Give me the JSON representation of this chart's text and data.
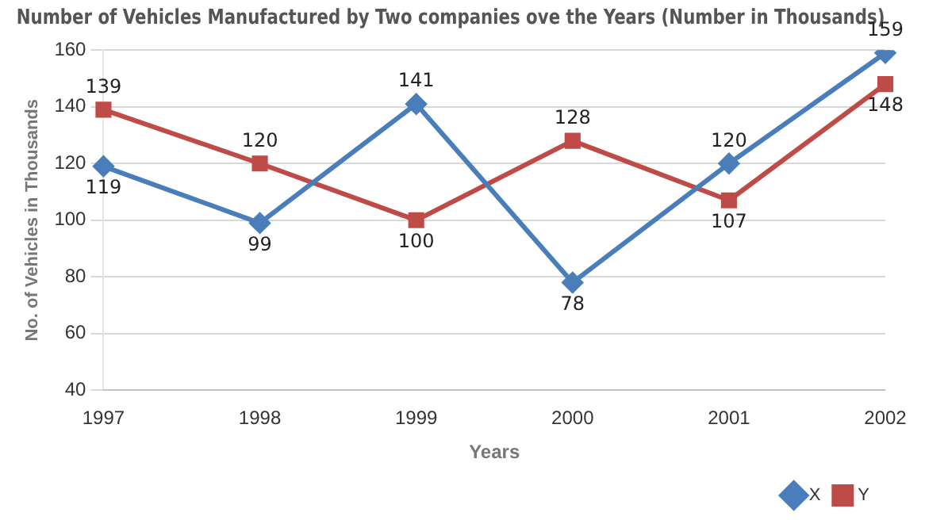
{
  "chart_data": {
    "type": "line",
    "title": "Number of Vehicles Manufactured by Two companies ove the Years (Number in Thousands)",
    "xlabel": "Years",
    "ylabel": "No. of Vehicles in Thousands",
    "categories": [
      "1997",
      "1998",
      "1999",
      "2000",
      "2001",
      "2002"
    ],
    "series": [
      {
        "name": "X",
        "color": "#4a7ebb",
        "marker": "diamond",
        "values": [
          119,
          99,
          141,
          78,
          120,
          159
        ]
      },
      {
        "name": "Y",
        "color": "#be4b48",
        "marker": "square",
        "values": [
          139,
          120,
          100,
          128,
          107,
          148
        ]
      }
    ],
    "ylim": [
      40,
      160
    ],
    "yticks": [
      40,
      60,
      80,
      100,
      120,
      140,
      160
    ],
    "grid": "y",
    "legend": "bottom right",
    "data_labels": true,
    "line_style": "solid"
  }
}
